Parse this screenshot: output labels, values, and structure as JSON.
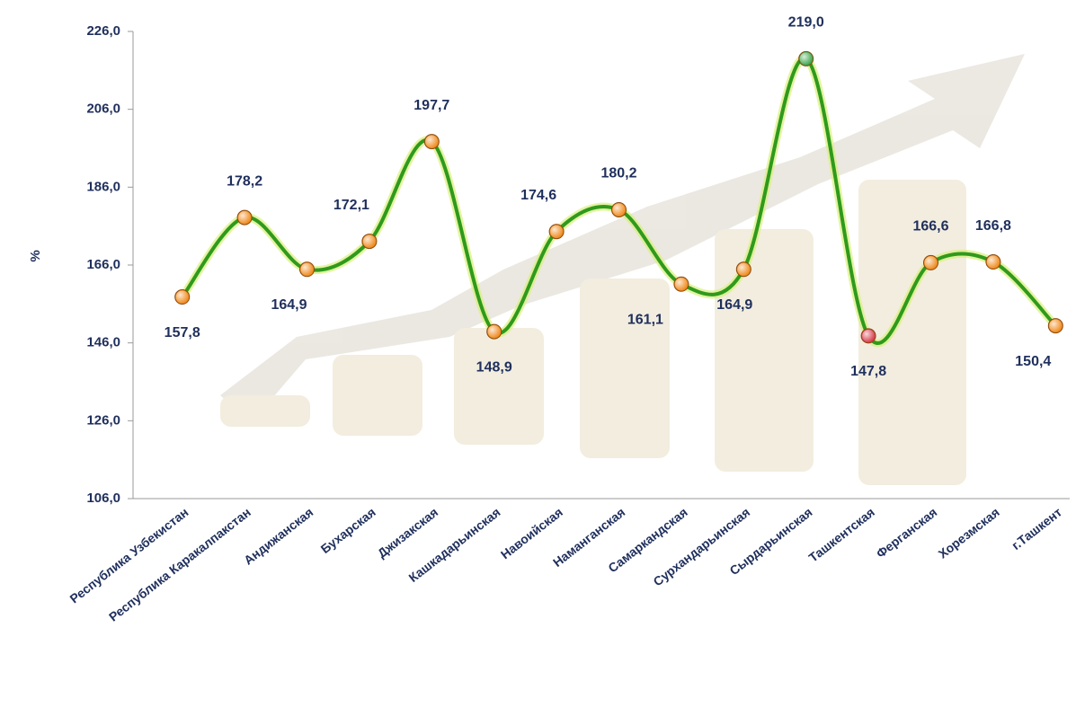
{
  "chart_data": {
    "type": "line",
    "y_label": "%",
    "categories": [
      "Республика Узбекистан",
      "Республика Каракалпакстан",
      "Андижанская",
      "Бухарская",
      "Джизакская",
      "Кашкадарьинская",
      "Навоийская",
      "Наманганская",
      "Самаркандская",
      "Сурхандарьинская",
      "Сырдарьинская",
      "Ташкентская",
      "Ферганская",
      "Хорезмская",
      "г.Ташкент"
    ],
    "values": [
      157.8,
      178.2,
      164.9,
      172.1,
      197.7,
      148.9,
      174.6,
      180.2,
      161.1,
      164.9,
      219.0,
      147.8,
      166.6,
      166.8,
      150.4
    ],
    "value_labels": [
      "157,8",
      "178,2",
      "164,9",
      "172,1",
      "197,7",
      "148,9",
      "174,6",
      "180,2",
      "161,1",
      "164,9",
      "219,0",
      "147,8",
      "166,6",
      "166,8",
      "150,4"
    ],
    "color": "#2f9a1c",
    "point_colors": [
      "#f08a1c",
      "#f08a1c",
      "#f08a1c",
      "#f08a1c",
      "#f08a1c",
      "#f08a1c",
      "#f08a1c",
      "#f08a1c",
      "#f08a1c",
      "#f08a1c",
      "#3aa64a",
      "#d63a4a",
      "#f08a1c",
      "#f08a1c",
      "#f08a1c"
    ],
    "ylim": [
      106,
      226
    ],
    "yticks": [
      {
        "value": 106,
        "label": "106,0"
      },
      {
        "value": 126,
        "label": "126,0"
      },
      {
        "value": 146,
        "label": "146,0"
      },
      {
        "value": 166,
        "label": "166,0"
      },
      {
        "value": 186,
        "label": "186,0"
      },
      {
        "value": 206,
        "label": "206,0"
      },
      {
        "value": 226,
        "label": "226,0"
      }
    ]
  }
}
